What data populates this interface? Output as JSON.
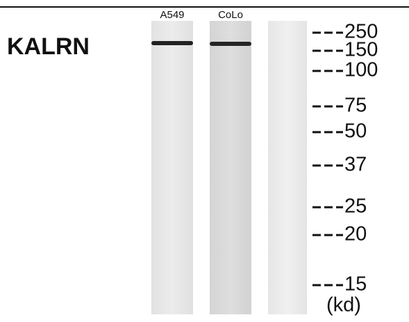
{
  "lanes": [
    "A549",
    "CoLo"
  ],
  "protein": "KALRN",
  "markers": [
    250,
    150,
    100,
    75,
    50,
    37,
    25,
    20,
    15
  ],
  "unit": "(kd)"
}
